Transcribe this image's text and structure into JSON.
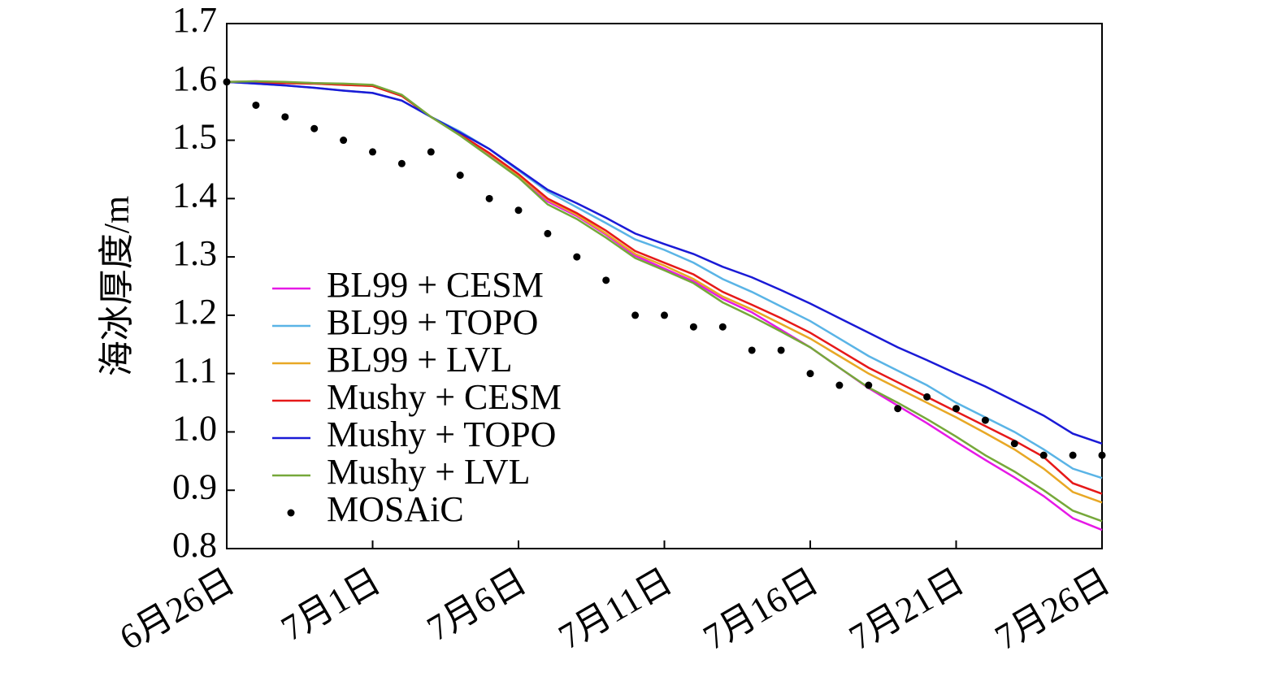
{
  "chart_data": {
    "type": "line",
    "y_label": "海冰厚度/m",
    "categories": [
      "6月26日",
      null,
      null,
      null,
      null,
      "7月1日",
      null,
      null,
      null,
      null,
      "7月6日",
      null,
      null,
      null,
      null,
      "7月11日",
      null,
      null,
      null,
      null,
      "7月16日",
      null,
      null,
      null,
      null,
      "7月21日",
      null,
      null,
      null,
      null,
      "7月26日"
    ],
    "ylim": [
      0.8,
      1.7
    ],
    "yticks": [
      {
        "value": 0.8,
        "label": "0.8"
      },
      {
        "value": 0.9,
        "label": "0.9"
      },
      {
        "value": 1.0,
        "label": "1.0"
      },
      1.1,
      1.2,
      1.3,
      1.4,
      1.5,
      1.6,
      1.7
    ],
    "grid": false,
    "legend": "left",
    "series": [
      {
        "name": "BL99 + CESM",
        "color": "#e619e6",
        "style": "line",
        "values": [
          1.6,
          1.601,
          1.599,
          1.598,
          1.596,
          1.594,
          1.577,
          1.54,
          1.51,
          1.475,
          1.438,
          1.395,
          1.37,
          1.338,
          1.302,
          1.28,
          1.258,
          1.228,
          1.205,
          1.175,
          1.145,
          1.11,
          1.075,
          1.045,
          1.015,
          0.983,
          0.952,
          0.922,
          0.89,
          0.852,
          0.832
        ]
      },
      {
        "name": "BL99 + TOPO",
        "color": "#5ab4e6",
        "style": "line",
        "values": [
          1.6,
          1.597,
          1.594,
          1.59,
          1.585,
          1.581,
          1.568,
          1.54,
          1.515,
          1.485,
          1.448,
          1.412,
          1.385,
          1.358,
          1.33,
          1.312,
          1.29,
          1.262,
          1.24,
          1.215,
          1.19,
          1.16,
          1.13,
          1.105,
          1.08,
          1.05,
          1.025,
          1.0,
          0.97,
          0.937,
          0.921
        ]
      },
      {
        "name": "BL99 + LVL",
        "color": "#e8a825",
        "style": "line",
        "values": [
          1.6,
          1.599,
          1.598,
          1.597,
          1.595,
          1.593,
          1.576,
          1.54,
          1.51,
          1.477,
          1.44,
          1.398,
          1.372,
          1.34,
          1.305,
          1.285,
          1.262,
          1.232,
          1.21,
          1.185,
          1.16,
          1.13,
          1.1,
          1.075,
          1.05,
          1.025,
          0.998,
          0.97,
          0.937,
          0.897,
          0.879
        ]
      },
      {
        "name": "Mushy + CESM",
        "color": "#e61919",
        "style": "line",
        "values": [
          1.6,
          1.599,
          1.598,
          1.597,
          1.595,
          1.593,
          1.576,
          1.54,
          1.51,
          1.478,
          1.442,
          1.4,
          1.375,
          1.345,
          1.31,
          1.29,
          1.27,
          1.24,
          1.218,
          1.195,
          1.17,
          1.14,
          1.11,
          1.085,
          1.06,
          1.035,
          1.01,
          0.985,
          0.957,
          0.912,
          0.894
        ]
      },
      {
        "name": "Mushy + TOPO",
        "color": "#1a1ad6",
        "style": "line",
        "values": [
          1.6,
          1.597,
          1.594,
          1.59,
          1.585,
          1.581,
          1.568,
          1.54,
          1.513,
          1.485,
          1.45,
          1.415,
          1.392,
          1.367,
          1.34,
          1.322,
          1.305,
          1.283,
          1.265,
          1.243,
          1.22,
          1.195,
          1.17,
          1.145,
          1.123,
          1.1,
          1.078,
          1.053,
          1.028,
          0.997,
          0.98
        ]
      },
      {
        "name": "Mushy + LVL",
        "color": "#76a83a",
        "style": "line",
        "values": [
          1.6,
          1.601,
          1.6,
          1.598,
          1.597,
          1.595,
          1.578,
          1.54,
          1.508,
          1.472,
          1.436,
          1.39,
          1.365,
          1.333,
          1.298,
          1.277,
          1.255,
          1.222,
          1.198,
          1.172,
          1.145,
          1.11,
          1.076,
          1.05,
          1.022,
          0.992,
          0.96,
          0.932,
          0.9,
          0.865,
          0.847
        ]
      },
      {
        "name": "MOSAiC",
        "color": "#000000",
        "style": "scatter",
        "values": [
          1.6,
          1.56,
          1.54,
          1.52,
          1.5,
          1.48,
          1.46,
          1.48,
          1.44,
          1.4,
          1.38,
          1.34,
          1.3,
          1.26,
          1.2,
          1.2,
          1.18,
          1.18,
          1.14,
          1.14,
          1.1,
          1.08,
          1.08,
          1.04,
          1.06,
          1.04,
          1.02,
          0.98,
          0.96,
          0.96,
          0.96
        ]
      }
    ]
  }
}
